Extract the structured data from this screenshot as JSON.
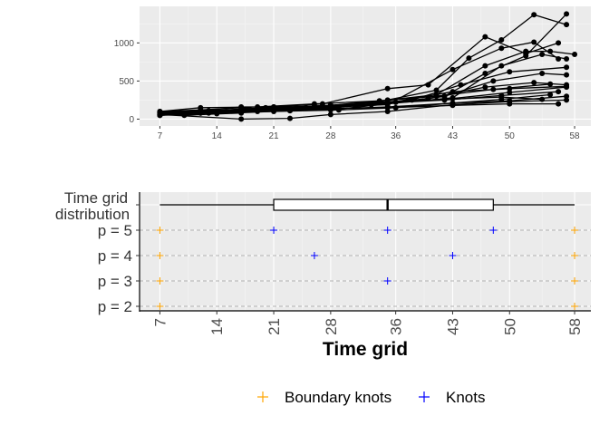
{
  "chart_data": [
    {
      "type": "line",
      "title": "",
      "xlabel": "",
      "ylabel": "",
      "x_ticks": [
        7,
        14,
        21,
        28,
        36,
        43,
        50,
        58
      ],
      "y_ticks": [
        0,
        500,
        1000
      ],
      "xlim": [
        4.5,
        60
      ],
      "ylim": [
        -90,
        1480
      ],
      "grid": true,
      "series": [
        {
          "x": [
            7,
            12,
            17,
            21,
            27,
            35,
            40,
            47,
            52,
            56
          ],
          "values": [
            90,
            110,
            160,
            160,
            200,
            400,
            450,
            1080,
            860,
            1000
          ]
        },
        {
          "x": [
            7,
            10,
            14,
            19,
            25,
            28,
            34,
            41,
            45,
            49,
            53,
            57
          ],
          "values": [
            60,
            70,
            100,
            120,
            150,
            180,
            230,
            380,
            800,
            1040,
            1370,
            1240
          ]
        },
        {
          "x": [
            7,
            12,
            17,
            23,
            28,
            35,
            42,
            47,
            52,
            57
          ],
          "values": [
            100,
            120,
            150,
            110,
            150,
            200,
            300,
            600,
            830,
            1380
          ]
        },
        {
          "x": [
            7,
            12,
            20,
            27,
            35,
            41,
            47,
            52,
            55,
            58
          ],
          "values": [
            70,
            90,
            130,
            170,
            250,
            320,
            700,
            890,
            890,
            850
          ]
        },
        {
          "x": [
            7,
            12,
            17,
            23,
            28,
            35,
            43,
            49,
            53,
            56
          ],
          "values": [
            50,
            80,
            110,
            140,
            160,
            190,
            650,
            930,
            1010,
            790
          ]
        },
        {
          "x": [
            7,
            10,
            17,
            21,
            28,
            35,
            43,
            49,
            54,
            57
          ],
          "values": [
            60,
            50,
            80,
            160,
            120,
            200,
            280,
            700,
            850,
            790
          ]
        },
        {
          "x": [
            7,
            12,
            19,
            25,
            31,
            38,
            44,
            50,
            57
          ],
          "values": [
            80,
            100,
            120,
            140,
            180,
            250,
            450,
            620,
            680
          ]
        },
        {
          "x": [
            7,
            13,
            20,
            28,
            35,
            42,
            48,
            54,
            57
          ],
          "values": [
            90,
            110,
            150,
            180,
            200,
            300,
            500,
            600,
            580
          ]
        },
        {
          "x": [
            7,
            12,
            19,
            27,
            33,
            40,
            47,
            53,
            57
          ],
          "values": [
            70,
            80,
            100,
            150,
            190,
            270,
            420,
            480,
            450
          ]
        },
        {
          "x": [
            7,
            13,
            21,
            28,
            35,
            43,
            50,
            57
          ],
          "values": [
            50,
            90,
            120,
            160,
            210,
            360,
            400,
            430
          ]
        },
        {
          "x": [
            7,
            12,
            18,
            26,
            33,
            42,
            49,
            56
          ],
          "values": [
            80,
            100,
            130,
            170,
            200,
            250,
            310,
            360
          ]
        },
        {
          "x": [
            7,
            14,
            21,
            28,
            36,
            43,
            50,
            57
          ],
          "values": [
            60,
            100,
            130,
            170,
            220,
            270,
            350,
            420
          ]
        },
        {
          "x": [
            7,
            12,
            20,
            28,
            35,
            42,
            49,
            54
          ],
          "values": [
            90,
            100,
            140,
            180,
            230,
            260,
            290,
            260
          ]
        },
        {
          "x": [
            7,
            12,
            21,
            28,
            35,
            43,
            50,
            56
          ],
          "values": [
            70,
            90,
            120,
            140,
            150,
            180,
            200,
            200
          ]
        },
        {
          "x": [
            7,
            17,
            23,
            28,
            35,
            43,
            50,
            57
          ],
          "values": [
            60,
            0,
            10,
            60,
            100,
            190,
            230,
            250
          ]
        },
        {
          "x": [
            7,
            13,
            21,
            29,
            36,
            43,
            50,
            57
          ],
          "values": [
            80,
            80,
            100,
            120,
            150,
            210,
            240,
            300
          ]
        },
        {
          "x": [
            7,
            14,
            23,
            29,
            35,
            43,
            49,
            55
          ],
          "values": [
            50,
            70,
            110,
            140,
            160,
            210,
            260,
            320
          ]
        },
        {
          "x": [
            7,
            12,
            19,
            26,
            34,
            41,
            48,
            55
          ],
          "values": [
            100,
            150,
            160,
            200,
            240,
            300,
            390,
            460
          ]
        }
      ]
    },
    {
      "type": "scatter",
      "xlabel": "Time grid",
      "x_ticks": [
        7,
        14,
        21,
        28,
        36,
        43,
        50,
        58
      ],
      "xlim": [
        4.5,
        60
      ],
      "row_labels": [
        "Time grid\ndistribution",
        "p =  5",
        "p =  4",
        "p =  3",
        "p =  2"
      ],
      "boxplot": {
        "min": 7,
        "q1": 21,
        "median": 35,
        "q3": 48,
        "max": 58
      },
      "knot_rows": [
        {
          "label": "p =  5",
          "boundary": [
            7,
            58
          ],
          "knots": [
            21,
            35,
            48
          ]
        },
        {
          "label": "p =  4",
          "boundary": [
            7,
            58
          ],
          "knots": [
            26,
            43
          ]
        },
        {
          "label": "p =  3",
          "boundary": [
            7,
            58
          ],
          "knots": [
            35
          ]
        },
        {
          "label": "p =  2",
          "boundary": [
            7,
            58
          ],
          "knots": []
        }
      ],
      "legend": {
        "placement": "bottom",
        "items": [
          {
            "label": "Boundary knots",
            "color": "#ffa500"
          },
          {
            "label": "Knots",
            "color": "#0000ff"
          }
        ]
      }
    }
  ],
  "colors": {
    "panel": "#ebebeb",
    "grid_major": "#ffffff",
    "line": "#000000",
    "boundary": "#ffa500",
    "knot": "#0000ff",
    "dash": "#b3b3b3"
  }
}
